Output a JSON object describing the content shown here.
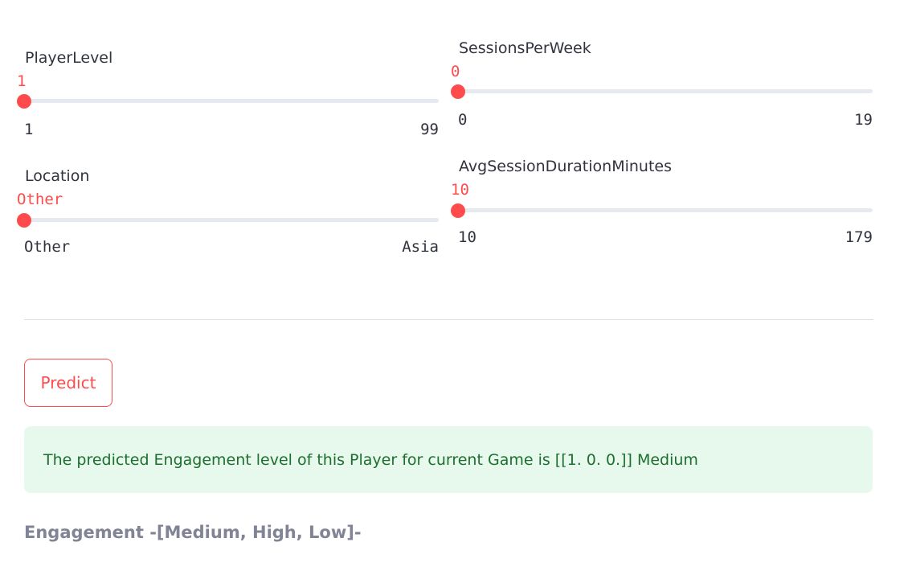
{
  "colors": {
    "accent": "#ff4b4b",
    "track": "#e6e9ef",
    "success_bg": "#e6f9ec",
    "success_text": "#1e6f2f"
  },
  "sliders": [
    {
      "label": "PlayerLevel",
      "value": "1",
      "min": "1",
      "max": "99",
      "fraction": 0
    },
    {
      "label": "SessionsPerWeek",
      "value": "0",
      "min": "0",
      "max": "19",
      "fraction": 0
    },
    {
      "label": "Location",
      "value": "Other",
      "min": "Other",
      "max": "Asia",
      "fraction": 0
    },
    {
      "label": "AvgSessionDurationMinutes",
      "value": "10",
      "min": "10",
      "max": "179",
      "fraction": 0
    }
  ],
  "predict_button": {
    "label": "Predict"
  },
  "result": {
    "message": "The predicted Engagement level of this Player for current Game is [[1. 0. 0.]] Medium"
  },
  "legend": {
    "text": "Engagement -[Medium, High, Low]-"
  }
}
